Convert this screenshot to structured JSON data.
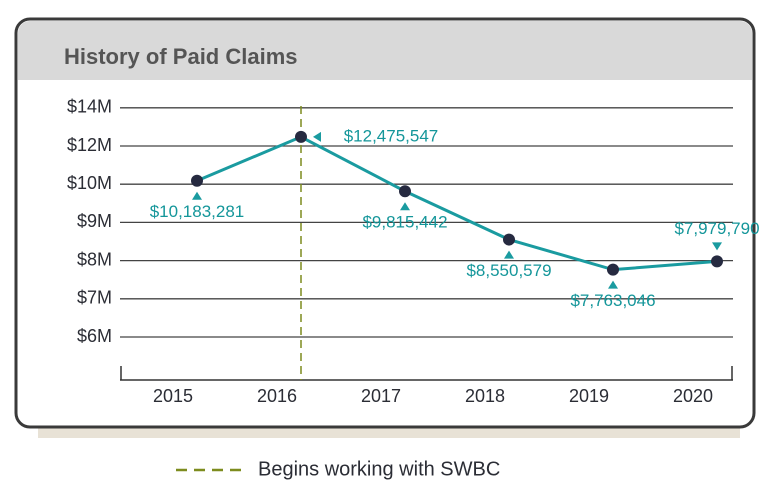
{
  "chart_data": {
    "type": "line",
    "title": "History of Paid Claims",
    "categories": [
      "2015",
      "2016",
      "2017",
      "2018",
      "2019",
      "2020"
    ],
    "series": [
      {
        "name": "Paid Claims",
        "color": "#1a9ba0",
        "marker_color": "#262a40",
        "values": [
          10183281,
          12475547,
          9815442,
          8550579,
          7763046,
          7979790
        ],
        "value_labels": [
          "$10,183,281",
          "$12,475,547",
          "$9,815,442",
          "$8,550,579",
          "$7,763,046",
          "$7,979,790"
        ]
      }
    ],
    "ylim": [
      5000000,
      14000000
    ],
    "yticks": [
      {
        "value": 6000000,
        "label": "$6M"
      },
      {
        "value": 7000000,
        "label": "$7M"
      },
      {
        "value": 8000000,
        "label": "$8M"
      },
      {
        "value": 9000000,
        "label": "$9M"
      },
      {
        "value": 10000000,
        "label": "$10M"
      },
      {
        "value": 12000000,
        "label": "$12M"
      },
      {
        "value": 14000000,
        "label": "$14M"
      }
    ],
    "grid": true,
    "annotation": {
      "label": "Begins working with SWBC",
      "x": "2016",
      "color": "#7d8c1e"
    }
  }
}
